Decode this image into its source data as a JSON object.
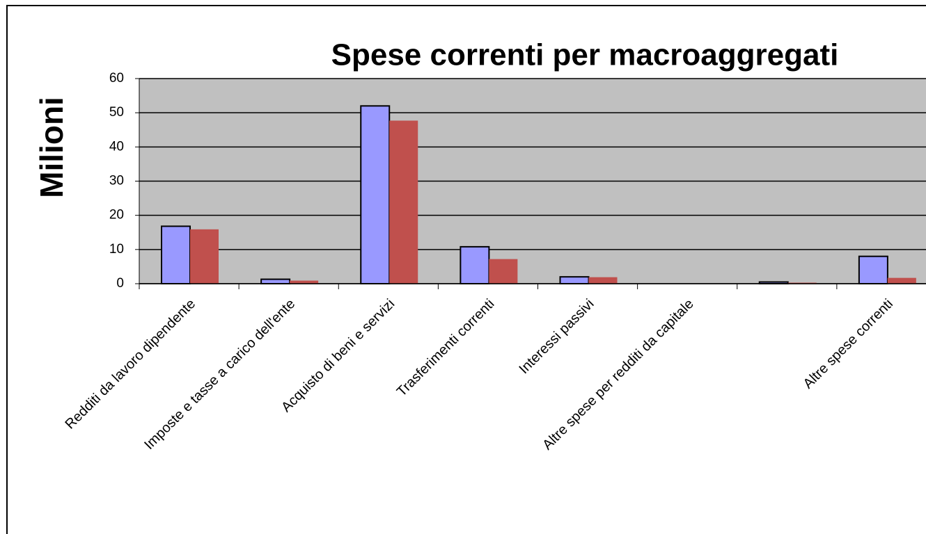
{
  "chart_data": {
    "type": "bar",
    "title": "Spese correnti per macroaggregati",
    "y_label": "Milioni",
    "categories": [
      "Redditi da lavoro dipendente",
      "Imposte e tasse a carico dell'ente",
      "Acquisto di beni e servizi",
      "Trasferimenti correnti",
      "Interessi passivi",
      "Altre spese per redditi da capitale",
      null,
      "Altre spese correnti"
    ],
    "series": [
      {
        "color": "#9999ff",
        "values": [
          16.8,
          1.3,
          52,
          10.8,
          2,
          0,
          0.5,
          8
        ]
      },
      {
        "color": "#c0504d",
        "values": [
          15.9,
          0.9,
          47.7,
          7.2,
          1.9,
          0,
          0.3,
          1.7
        ]
      }
    ],
    "ylim": [
      0,
      60
    ],
    "yticks": [
      0,
      10,
      20,
      30,
      40,
      50,
      60
    ],
    "grid": true,
    "plot_background": "#c0c0c0"
  }
}
